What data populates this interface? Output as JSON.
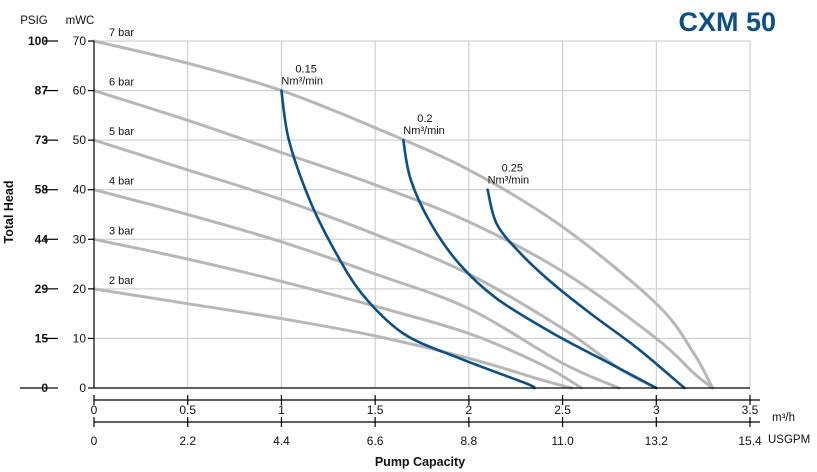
{
  "chart_data": {
    "type": "line",
    "title": "CXM 50",
    "xlabel": "Pump Capacity",
    "ylabel": "Total Head",
    "x_unit_primary": "m³/h",
    "x_unit_secondary": "USGPM",
    "y_unit_primary": "mWC",
    "y_unit_secondary": "PSIG",
    "xlim": [
      0,
      3.5
    ],
    "ylim": [
      0,
      70
    ],
    "grid": true,
    "x_ticks": [
      {
        "value": 0,
        "primary": "0",
        "secondary": "0"
      },
      {
        "value": 0.5,
        "primary": "0.5",
        "secondary": "2.2"
      },
      {
        "value": 1,
        "primary": "1",
        "secondary": "4.4"
      },
      {
        "value": 1.5,
        "primary": "1.5",
        "secondary": "6.6"
      },
      {
        "value": 2,
        "primary": "2",
        "secondary": "8.8"
      },
      {
        "value": 2.5,
        "primary": "2.5",
        "secondary": "11.0"
      },
      {
        "value": 3,
        "primary": "3",
        "secondary": "13.2"
      },
      {
        "value": 3.5,
        "primary": "3.5",
        "secondary": "15.4"
      }
    ],
    "y_ticks": [
      {
        "value": 0,
        "primary": "0",
        "secondary": "0"
      },
      {
        "value": 10,
        "primary": "10",
        "secondary": "15"
      },
      {
        "value": 20,
        "primary": "20",
        "secondary": "29"
      },
      {
        "value": 30,
        "primary": "30",
        "secondary": "44"
      },
      {
        "value": 40,
        "primary": "40",
        "secondary": "58"
      },
      {
        "value": 50,
        "primary": "50",
        "secondary": "73"
      },
      {
        "value": 60,
        "primary": "60",
        "secondary": "87"
      },
      {
        "value": 70,
        "primary": "70",
        "secondary": "100"
      }
    ],
    "colors": {
      "pressure_curves": "#b7b7b9",
      "air_consumption_curves": "#0b4f86",
      "title": "#0b4f86",
      "grid": "#c9c9c9",
      "axis": "#000000"
    },
    "pressure_series": [
      {
        "name": "7 bar",
        "points": [
          [
            0,
            70
          ],
          [
            0.5,
            65.5
          ],
          [
            1,
            60
          ],
          [
            1.5,
            52.5
          ],
          [
            2,
            44
          ],
          [
            2.5,
            32.5
          ],
          [
            3,
            17
          ],
          [
            3.2,
            7
          ],
          [
            3.3,
            0
          ]
        ]
      },
      {
        "name": "6 bar",
        "points": [
          [
            0,
            60
          ],
          [
            0.5,
            54
          ],
          [
            1,
            47.5
          ],
          [
            1.5,
            41
          ],
          [
            2,
            33.5
          ],
          [
            2.5,
            23.5
          ],
          [
            3,
            10
          ],
          [
            3.2,
            3
          ],
          [
            3.3,
            0
          ]
        ]
      },
      {
        "name": "5 bar",
        "points": [
          [
            0,
            50
          ],
          [
            0.5,
            44
          ],
          [
            1,
            38
          ],
          [
            1.5,
            31
          ],
          [
            2,
            23
          ],
          [
            2.5,
            12
          ],
          [
            2.8,
            4
          ],
          [
            3,
            0
          ]
        ]
      },
      {
        "name": "4 bar",
        "points": [
          [
            0,
            40
          ],
          [
            0.5,
            35
          ],
          [
            1,
            29.5
          ],
          [
            1.5,
            23
          ],
          [
            2,
            16
          ],
          [
            2.5,
            5
          ],
          [
            2.8,
            0
          ]
        ]
      },
      {
        "name": "3 bar",
        "points": [
          [
            0,
            30
          ],
          [
            0.5,
            26
          ],
          [
            1,
            21.5
          ],
          [
            1.5,
            16.5
          ],
          [
            2,
            11
          ],
          [
            2.4,
            4.5
          ],
          [
            2.6,
            0
          ]
        ]
      },
      {
        "name": "2 bar",
        "points": [
          [
            0,
            20
          ],
          [
            0.5,
            17
          ],
          [
            1,
            14
          ],
          [
            1.5,
            10.5
          ],
          [
            2,
            6
          ],
          [
            2.4,
            1.5
          ],
          [
            2.55,
            0
          ]
        ]
      }
    ],
    "air_series": [
      {
        "name": "0.15",
        "unit": "Nm³/min",
        "points": [
          [
            1,
            60
          ],
          [
            1.04,
            50
          ],
          [
            1.15,
            38
          ],
          [
            1.28,
            28
          ],
          [
            1.43,
            19
          ],
          [
            1.65,
            11
          ],
          [
            1.95,
            6
          ],
          [
            2.3,
            1
          ],
          [
            2.35,
            0
          ]
        ]
      },
      {
        "name": "0.2",
        "unit": "Nm³/min",
        "points": [
          [
            1.65,
            50
          ],
          [
            1.69,
            42
          ],
          [
            1.8,
            33
          ],
          [
            1.95,
            25
          ],
          [
            2.15,
            18
          ],
          [
            2.45,
            11
          ],
          [
            2.75,
            5
          ],
          [
            3,
            0
          ]
        ]
      },
      {
        "name": "0.25",
        "unit": "Nm³/min",
        "points": [
          [
            2.1,
            40
          ],
          [
            2.15,
            33
          ],
          [
            2.28,
            27
          ],
          [
            2.45,
            21
          ],
          [
            2.65,
            15
          ],
          [
            2.9,
            8
          ],
          [
            3.15,
            0
          ]
        ]
      }
    ]
  }
}
